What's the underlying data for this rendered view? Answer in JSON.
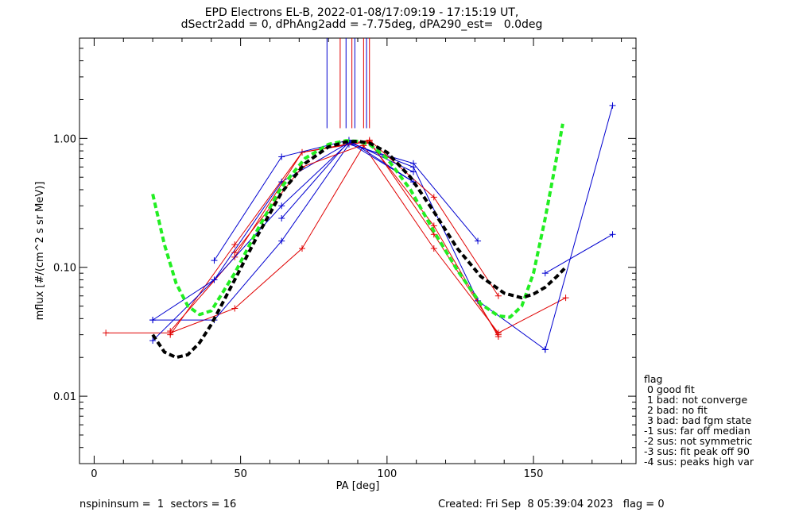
{
  "title_line1": "EPD Electrons EL-B, 2022-01-08/17:09:19 - 17:15:19 UT,",
  "title_line2": "dSectr2add = 0, dPhAng2add = -7.75deg, dPA290_est=   0.0deg",
  "footer": {
    "left": "nspininsum =  1  sectors = 16",
    "right": "Created: Fri Sep  8 05:39:04 2023   flag = 0"
  },
  "legend": {
    "title": "flag",
    "items": [
      " 0 good fit",
      " 1 bad: not converge",
      " 2 bad: no fit",
      " 3 bad: bad fgm state",
      "-1 sus: far off median",
      "-2 sus: not symmetric",
      "-3 sus: fit peak off 90",
      "-4 sus: peaks high var"
    ]
  },
  "colors": {
    "red": "#e00000",
    "blue": "#0000d0",
    "green": "#22ee22",
    "black": "#000000"
  },
  "chart_data": {
    "type": "line",
    "xlabel": "PA [deg]",
    "ylabel": "mflux [#/(cm^2 s sr MeV)]",
    "xlim": [
      -5,
      185
    ],
    "ylim": [
      0.003,
      6.0
    ],
    "yscale": "log",
    "x_ticks": [
      0,
      50,
      100,
      150
    ],
    "x_tick_labels": [
      "0",
      "50",
      "100",
      "150"
    ],
    "y_ticks": [
      0.01,
      0.1,
      1.0
    ],
    "y_tick_labels": [
      "0.01",
      "0.10",
      "1.00"
    ],
    "series": [
      {
        "color": "red",
        "x": [
          4,
          26,
          48,
          71,
          92,
          116,
          138,
          161
        ],
        "y": [
          0.031,
          0.031,
          0.048,
          0.14,
          0.88,
          0.14,
          0.031,
          0.058
        ]
      },
      {
        "color": "blue",
        "x": [
          20,
          41,
          64,
          87,
          109,
          131
        ],
        "y": [
          0.039,
          0.039,
          0.16,
          0.9,
          0.64,
          0.16
        ]
      },
      {
        "color": "red",
        "x": [
          26,
          48,
          71,
          94,
          116,
          138
        ],
        "y": [
          0.03,
          0.15,
          0.78,
          0.95,
          0.18,
          0.03
        ]
      },
      {
        "color": "blue",
        "x": [
          20,
          41,
          64,
          87,
          109,
          131,
          154
        ],
        "y": [
          0.027,
          0.08,
          0.46,
          0.93,
          0.6,
          0.055,
          0.023
        ]
      },
      {
        "color": "red",
        "x": [
          26,
          48,
          71,
          94,
          116,
          138
        ],
        "y": [
          0.032,
          0.12,
          0.78,
          0.97,
          0.35,
          0.06
        ]
      },
      {
        "color": "blue",
        "x": [
          41,
          64,
          87,
          109
        ],
        "y": [
          0.113,
          0.72,
          0.97,
          0.46
        ]
      },
      {
        "color": "blue",
        "x": [
          20,
          41,
          64,
          87,
          109
        ],
        "y": [
          0.039,
          0.08,
          0.3,
          0.93,
          0.46
        ]
      },
      {
        "color": "red",
        "x": [
          48,
          71,
          94,
          116,
          138
        ],
        "y": [
          0.13,
          0.6,
          0.93,
          0.21,
          0.029
        ]
      },
      {
        "color": "blue",
        "x": [
          64,
          87,
          109
        ],
        "y": [
          0.24,
          0.95,
          0.55
        ]
      },
      {
        "color": "blue",
        "x": [
          154,
          177
        ],
        "y": [
          0.09,
          0.18
        ]
      },
      {
        "color": "blue",
        "x": [
          154,
          177
        ],
        "y": [
          0.023,
          1.8
        ]
      }
    ],
    "fits": [
      {
        "color": "green",
        "dashed": true,
        "x": [
          20,
          24,
          28,
          32,
          36,
          40,
          48,
          56,
          64,
          72,
          80,
          86,
          90,
          94,
          100,
          108,
          116,
          124,
          132,
          138,
          142,
          146,
          150,
          154,
          157,
          160
        ],
        "y": [
          0.37,
          0.15,
          0.075,
          0.05,
          0.043,
          0.046,
          0.09,
          0.2,
          0.42,
          0.7,
          0.9,
          0.96,
          0.95,
          0.9,
          0.7,
          0.4,
          0.19,
          0.095,
          0.052,
          0.042,
          0.041,
          0.05,
          0.09,
          0.24,
          0.55,
          1.3
        ]
      },
      {
        "color": "black",
        "dashed": true,
        "x": [
          20,
          24,
          28,
          32,
          36,
          40,
          48,
          56,
          64,
          72,
          80,
          86,
          90,
          94,
          100,
          108,
          116,
          124,
          132,
          140,
          146,
          150,
          154,
          158,
          161
        ],
        "y": [
          0.03,
          0.022,
          0.02,
          0.021,
          0.026,
          0.036,
          0.08,
          0.18,
          0.38,
          0.64,
          0.86,
          0.94,
          0.95,
          0.92,
          0.78,
          0.5,
          0.27,
          0.14,
          0.085,
          0.063,
          0.058,
          0.062,
          0.07,
          0.085,
          0.1
        ]
      }
    ],
    "vlines": [
      {
        "color": "blue",
        "x": 79.5,
        "y_top": 6.0,
        "y_bottom": 1.2
      },
      {
        "color": "red",
        "x": 84,
        "y_top": 6.0,
        "y_bottom": 1.2
      },
      {
        "color": "blue",
        "x": 86,
        "y_top": 6.0,
        "y_bottom": 1.2
      },
      {
        "color": "red",
        "x": 88,
        "y_top": 6.0,
        "y_bottom": 1.2
      },
      {
        "color": "blue",
        "x": 89,
        "y_top": 6.0,
        "y_bottom": 1.2
      },
      {
        "color": "red",
        "x": 92,
        "y_top": 6.0,
        "y_bottom": 1.2
      },
      {
        "color": "blue",
        "x": 93,
        "y_top": 6.0,
        "y_bottom": 1.2
      },
      {
        "color": "red",
        "x": 94,
        "y_top": 6.0,
        "y_bottom": 1.2
      }
    ]
  }
}
